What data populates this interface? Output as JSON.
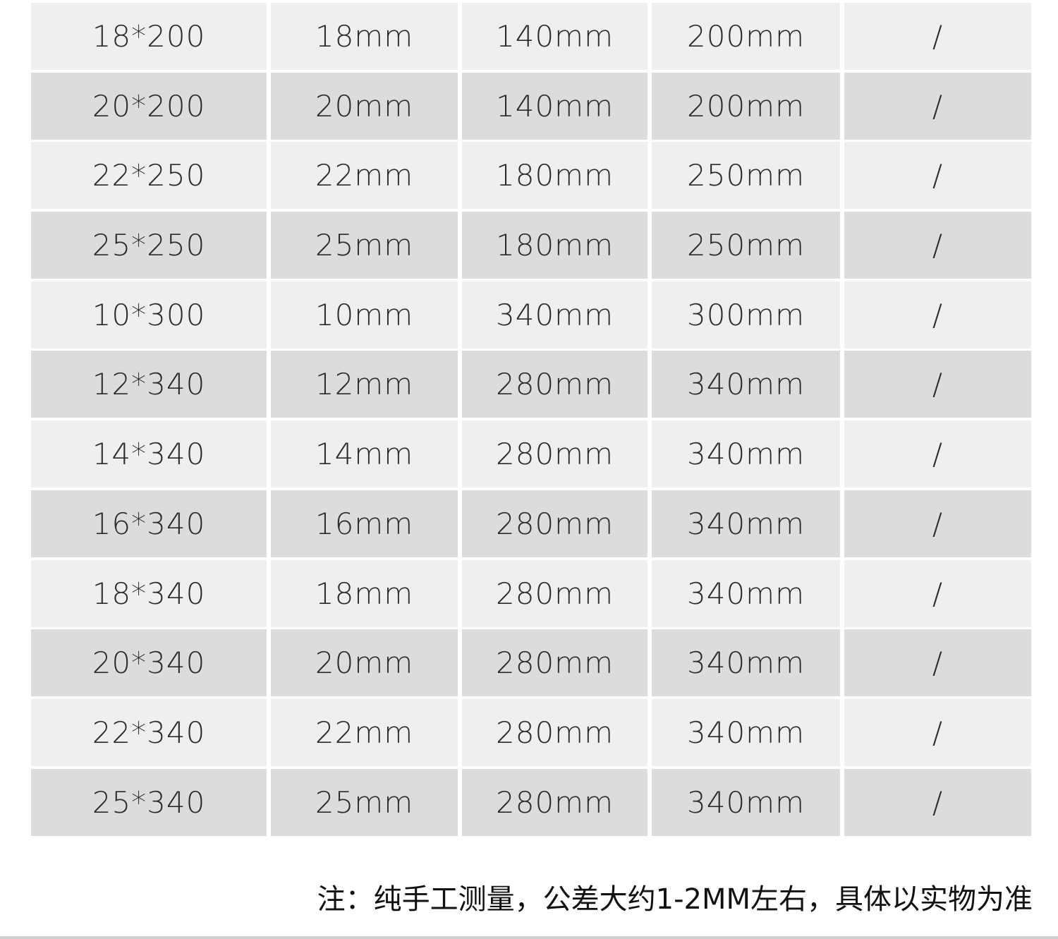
{
  "table": {
    "rows": [
      [
        "18*200",
        "18mm",
        "140mm",
        "200mm",
        "/"
      ],
      [
        "20*200",
        "20mm",
        "140mm",
        "200mm",
        "/"
      ],
      [
        "22*250",
        "22mm",
        "180mm",
        "250mm",
        "/"
      ],
      [
        "25*250",
        "25mm",
        "180mm",
        "250mm",
        "/"
      ],
      [
        "10*300",
        "10mm",
        "340mm",
        "300mm",
        "/"
      ],
      [
        "12*340",
        "12mm",
        "280mm",
        "340mm",
        "/"
      ],
      [
        "14*340",
        "14mm",
        "280mm",
        "340mm",
        "/"
      ],
      [
        "16*340",
        "16mm",
        "280mm",
        "340mm",
        "/"
      ],
      [
        "18*340",
        "18mm",
        "280mm",
        "340mm",
        "/"
      ],
      [
        "20*340",
        "20mm",
        "280mm",
        "340mm",
        "/"
      ],
      [
        "22*340",
        "22mm",
        "280mm",
        "340mm",
        "/"
      ],
      [
        "25*340",
        "25mm",
        "280mm",
        "340mm",
        "/"
      ]
    ],
    "colors": {
      "light_row": "#efefef",
      "dark_row": "#dcdcdc"
    }
  },
  "note": "注：纯手工测量，公差大约1-2MM左右，具体以实物为准"
}
